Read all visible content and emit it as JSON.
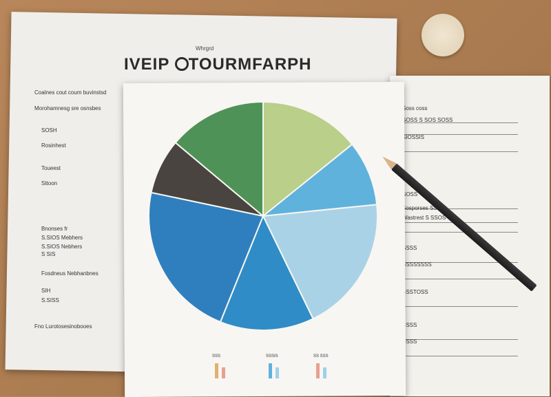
{
  "left_sheet": {
    "subtitle": "Whrgrd",
    "title": "IVEIP",
    "title2": "TOURMFARPH",
    "lines": [
      "Coalnes cout coum buvinstsd",
      "Morohamnesg sre osnsbes",
      "SOSH",
      "Rosinhest",
      "Toueest",
      "Sttoon",
      "Bnonses fr",
      "S.SIOS Mebhers",
      "S.SIOS Nebhers",
      "S SIS",
      "Fosdneus Nebhanbnes",
      "SIH",
      "S.SISS",
      "Fno Lurotosesinobooes"
    ]
  },
  "right_sheet": {
    "lines": [
      "Soss coss",
      "SOSS S SOS SOSS",
      "SIOSSIS",
      "SOSS",
      "Sosporses SSOS",
      "Wastrest S SSOS",
      "SSSS",
      "SSSSSSSS",
      "SSSTOSS",
      "SSSS",
      "SSSS"
    ]
  },
  "pie": {
    "slices": [
      {
        "pct": 14.2,
        "color": "#b9cf8a"
      },
      {
        "pct": 9.2,
        "color": "#5fb2dc"
      },
      {
        "pct": 19.4,
        "color": "#a9d2e6"
      },
      {
        "pct": 13.3,
        "color": "#2f8cc6"
      },
      {
        "pct": 22.2,
        "color": "#2f7fbe"
      },
      {
        "pct": 7.8,
        "color": "#4a4440"
      },
      {
        "pct": 13.9,
        "color": "#4f9257"
      }
    ]
  },
  "mini_labels": [
    "SSS",
    "SSSIS",
    "SS SSS"
  ]
}
